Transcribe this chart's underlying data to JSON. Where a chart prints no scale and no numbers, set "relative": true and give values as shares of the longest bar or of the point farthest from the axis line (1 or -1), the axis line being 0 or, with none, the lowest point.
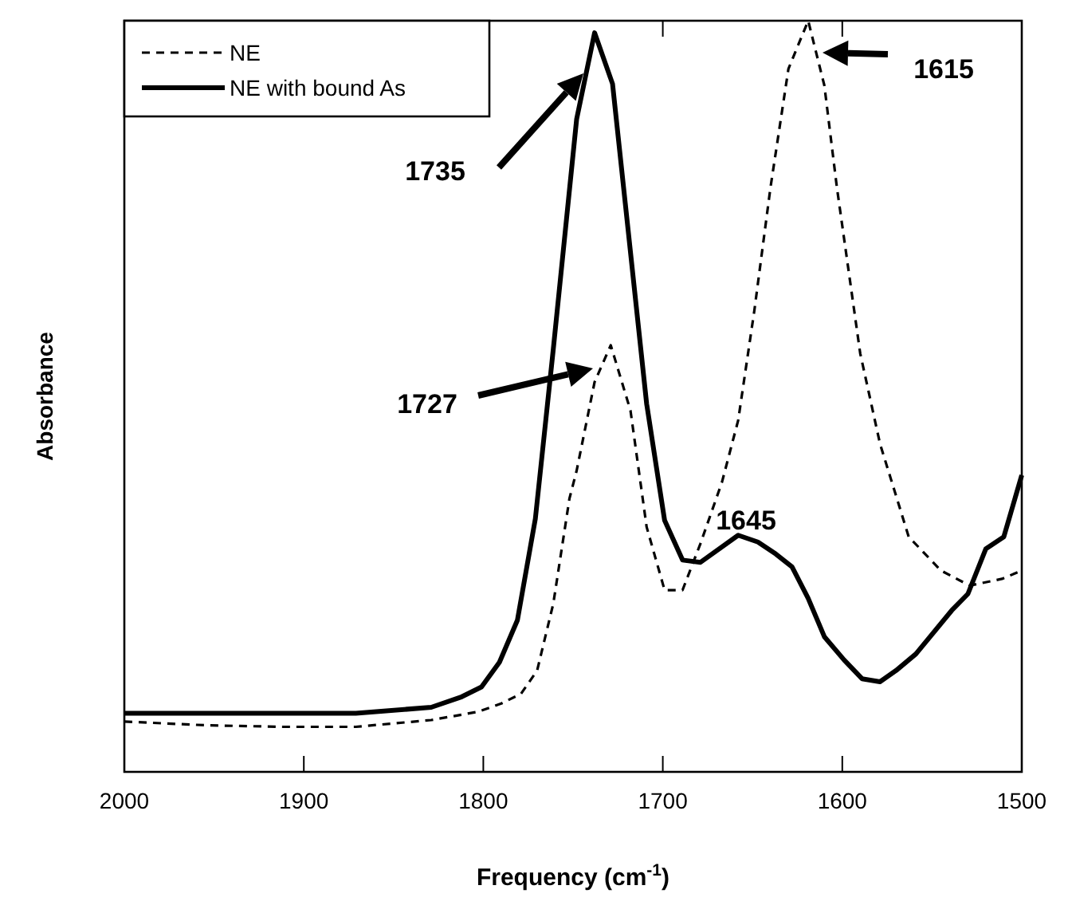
{
  "chart_data": {
    "type": "line",
    "relative": true,
    "xlabel": "Frequency (cm$^{-1}$)",
    "ylabel": "Absorbance",
    "xlim": [
      2000,
      1500
    ],
    "xticks": [
      2000,
      1900,
      1800,
      1700,
      1600,
      1500
    ],
    "legend": "top left",
    "tick_labels": "x",
    "series": [
      {
        "name": "NE",
        "color": "#000000",
        "line_style": "dashed",
        "x": [
          2000,
          1954,
          1912,
          1871,
          1829,
          1803,
          1790,
          1779,
          1770,
          1761,
          1752,
          1748,
          1738,
          1729,
          1718,
          1709,
          1699,
          1689,
          1679,
          1667,
          1658,
          1649,
          1640,
          1630,
          1619,
          1610,
          1603,
          1590,
          1579,
          1563,
          1545,
          1529,
          1511,
          1500
        ],
        "values": [
          0.067,
          0.062,
          0.06,
          0.06,
          0.069,
          0.08,
          0.091,
          0.104,
          0.135,
          0.224,
          0.364,
          0.401,
          0.519,
          0.568,
          0.481,
          0.326,
          0.242,
          0.242,
          0.304,
          0.386,
          0.468,
          0.614,
          0.778,
          0.936,
          1,
          0.914,
          0.778,
          0.557,
          0.437,
          0.313,
          0.268,
          0.248,
          0.257,
          0.268
        ]
      },
      {
        "name": "NE with bound As",
        "color": "#000000",
        "line_style": "solid",
        "x": [
          2000,
          1871,
          1829,
          1812,
          1801,
          1791,
          1781,
          1771,
          1761,
          1748,
          1738,
          1728,
          1709,
          1699,
          1689,
          1679,
          1658,
          1647,
          1637,
          1628,
          1619,
          1610,
          1599,
          1589,
          1579,
          1570,
          1559,
          1539,
          1530,
          1520,
          1510,
          1500
        ],
        "values": [
          0.078,
          0.078,
          0.086,
          0.1,
          0.113,
          0.146,
          0.202,
          0.337,
          0.563,
          0.869,
          0.984,
          0.916,
          0.49,
          0.335,
          0.282,
          0.279,
          0.315,
          0.306,
          0.29,
          0.273,
          0.231,
          0.18,
          0.149,
          0.124,
          0.12,
          0.135,
          0.157,
          0.215,
          0.237,
          0.297,
          0.313,
          0.395
        ]
      }
    ],
    "annotations": [
      "1735",
      "1727",
      "1615",
      "1645"
    ]
  }
}
